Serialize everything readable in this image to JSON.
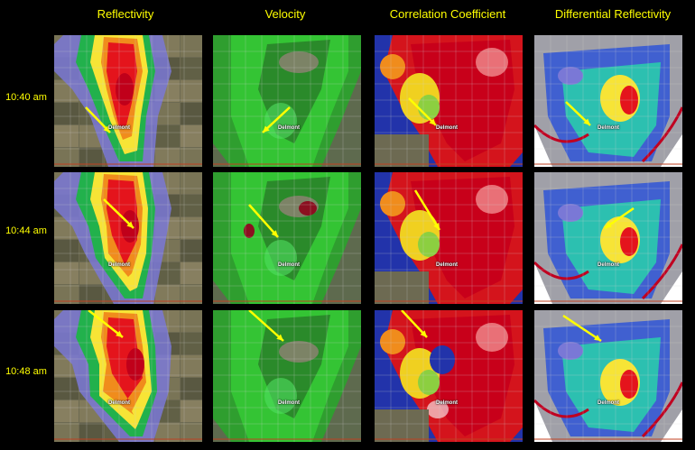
{
  "columns": [
    {
      "title": "Reflectivity",
      "product": "reflectivity"
    },
    {
      "title": "Velocity",
      "product": "velocity"
    },
    {
      "title": "Correlation Coefficient",
      "product": "cc"
    },
    {
      "title": "Differential Reflectivity",
      "product": "zdr"
    }
  ],
  "rows": [
    {
      "time": "10:40 am"
    },
    {
      "time": "10:44 am"
    },
    {
      "time": "10:48 am"
    }
  ],
  "town_label": "Delmont",
  "arrow_color": "#ffff00",
  "label_color": "#ffff00",
  "background_color": "#000000"
}
